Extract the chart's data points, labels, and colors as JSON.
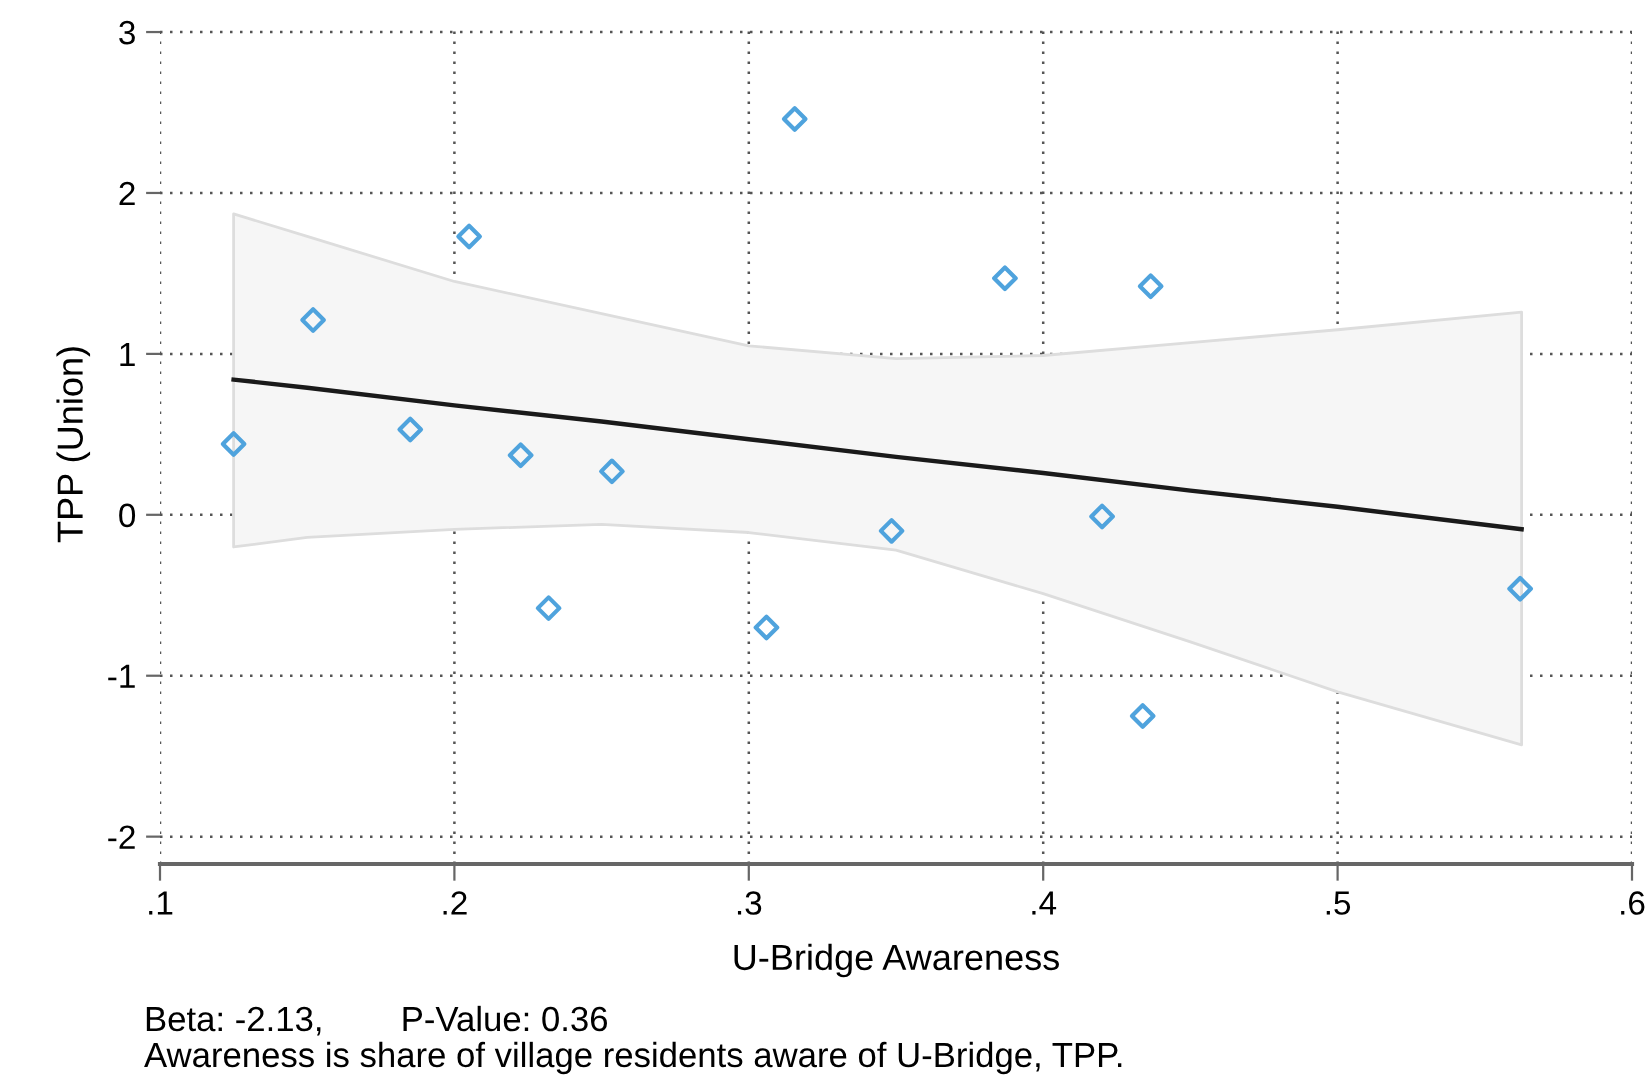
{
  "chart_data": {
    "type": "scatter",
    "xlabel": "U-Bridge Awareness",
    "ylabel": "TPP (Union)",
    "xlim": [
      0.1,
      0.6
    ],
    "ylim": [
      -2.17,
      3.05
    ],
    "xticks": [
      {
        "value": 0.1,
        "label": ".1"
      },
      {
        "value": 0.2,
        "label": ".2"
      },
      {
        "value": 0.3,
        "label": ".3"
      },
      {
        "value": 0.4,
        "label": ".4"
      },
      {
        "value": 0.5,
        "label": ".5"
      },
      {
        "value": 0.6,
        "label": ".6"
      }
    ],
    "yticks": [
      -2,
      -1,
      0,
      1,
      2,
      3
    ],
    "grid": true,
    "series": [
      {
        "marker": "diamond",
        "color": "#4fa3dd",
        "x": [
          0.125,
          0.152,
          0.185,
          0.205,
          0.2225,
          0.232,
          0.2535,
          0.306,
          0.3156,
          0.3485,
          0.387,
          0.42,
          0.4338,
          0.4365,
          0.562
        ],
        "values": [
          0.44,
          1.21,
          0.53,
          1.73,
          0.37,
          -0.58,
          0.27,
          -0.7,
          2.46,
          -0.1,
          1.47,
          -0.01,
          -1.25,
          1.42,
          -0.46
        ]
      },
      {
        "type": "line",
        "color": "#1a1a1a",
        "x": [
          0.125,
          0.15,
          0.2,
          0.25,
          0.3,
          0.35,
          0.4,
          0.45,
          0.5,
          0.5625
        ],
        "values": [
          0.84,
          0.79,
          0.68,
          0.58,
          0.47,
          0.36,
          0.26,
          0.15,
          0.05,
          -0.09
        ],
        "lower": [
          -0.2,
          -0.14,
          -0.09,
          -0.06,
          -0.11,
          -0.22,
          -0.49,
          -0.79,
          -1.1,
          -1.43
        ],
        "upper": [
          1.87,
          1.73,
          1.45,
          1.25,
          1.05,
          0.97,
          0.99,
          1.07,
          1.15,
          1.26
        ]
      }
    ],
    "annotations": [
      "Beta: -2.13,        P-Value: 0.36",
      "Awareness is share of village residents aware of U-Bridge, TPP."
    ]
  }
}
